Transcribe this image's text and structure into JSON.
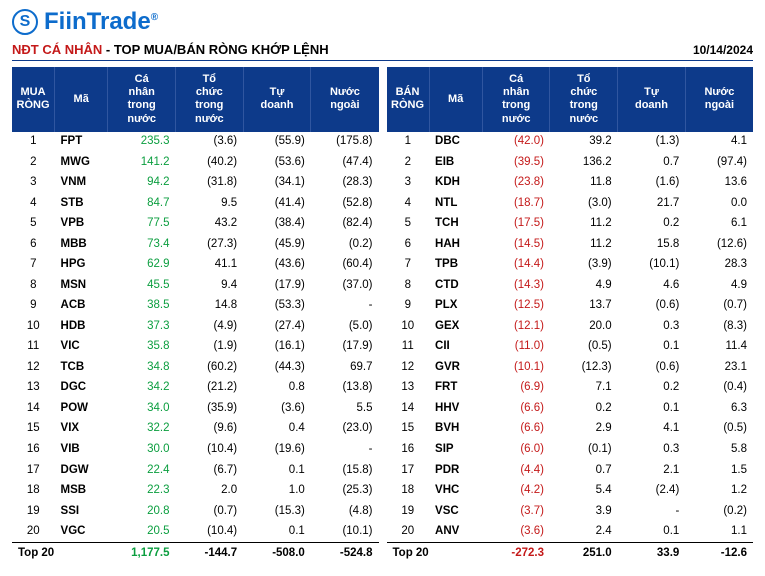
{
  "brand": "FiinTrade",
  "title_prefix": "NĐT CÁ NHÂN",
  "title_sep": " - ",
  "title_main": "TOP MUA/BÁN RÒNG KHỚP LỆNH",
  "date": "10/14/2024",
  "colors": {
    "brand": "#0d6ccc",
    "header_bg": "#0d3a8a",
    "positive": "#0b9e3f",
    "negative": "#c41919"
  },
  "buy": {
    "heading": "MUA RÒNG",
    "columns": [
      "Mã",
      "Cá nhân trong nước",
      "Tổ chức trong nước",
      "Tự doanh",
      "Nước ngoài"
    ],
    "rows": [
      {
        "r": 1,
        "t": "FPT",
        "v": [
          235.3,
          -3.6,
          -55.9,
          -175.8
        ]
      },
      {
        "r": 2,
        "t": "MWG",
        "v": [
          141.2,
          -40.2,
          -53.6,
          -47.4
        ]
      },
      {
        "r": 3,
        "t": "VNM",
        "v": [
          94.2,
          -31.8,
          -34.1,
          -28.3
        ]
      },
      {
        "r": 4,
        "t": "STB",
        "v": [
          84.7,
          9.5,
          -41.4,
          -52.8
        ]
      },
      {
        "r": 5,
        "t": "VPB",
        "v": [
          77.5,
          43.2,
          -38.4,
          -82.4
        ]
      },
      {
        "r": 6,
        "t": "MBB",
        "v": [
          73.4,
          -27.3,
          -45.9,
          -0.2
        ]
      },
      {
        "r": 7,
        "t": "HPG",
        "v": [
          62.9,
          41.1,
          -43.6,
          -60.4
        ]
      },
      {
        "r": 8,
        "t": "MSN",
        "v": [
          45.5,
          9.4,
          -17.9,
          -37.0
        ]
      },
      {
        "r": 9,
        "t": "ACB",
        "v": [
          38.5,
          14.8,
          -53.3,
          null
        ]
      },
      {
        "r": 10,
        "t": "HDB",
        "v": [
          37.3,
          -4.9,
          -27.4,
          -5.0
        ]
      },
      {
        "r": 11,
        "t": "VIC",
        "v": [
          35.8,
          -1.9,
          -16.1,
          -17.9
        ]
      },
      {
        "r": 12,
        "t": "TCB",
        "v": [
          34.8,
          -60.2,
          -44.3,
          69.7
        ]
      },
      {
        "r": 13,
        "t": "DGC",
        "v": [
          34.2,
          -21.2,
          0.8,
          -13.8
        ]
      },
      {
        "r": 14,
        "t": "POW",
        "v": [
          34.0,
          -35.9,
          -3.6,
          5.5
        ]
      },
      {
        "r": 15,
        "t": "VIX",
        "v": [
          32.2,
          -9.6,
          0.4,
          -23.0
        ]
      },
      {
        "r": 16,
        "t": "VIB",
        "v": [
          30.0,
          -10.4,
          -19.6,
          null
        ]
      },
      {
        "r": 17,
        "t": "DGW",
        "v": [
          22.4,
          -6.7,
          0.1,
          -15.8
        ]
      },
      {
        "r": 18,
        "t": "MSB",
        "v": [
          22.3,
          2.0,
          1.0,
          -25.3
        ]
      },
      {
        "r": 19,
        "t": "SSI",
        "v": [
          20.8,
          -0.7,
          -15.3,
          -4.8
        ]
      },
      {
        "r": 20,
        "t": "VGC",
        "v": [
          20.5,
          -10.4,
          0.1,
          -10.1
        ]
      }
    ],
    "footer_label": "Top 20",
    "footer": [
      1177.5,
      -144.7,
      -508.0,
      -524.8
    ]
  },
  "sell": {
    "heading": "BÁN RÒNG",
    "columns": [
      "Mã",
      "Cá nhân trong nước",
      "Tổ chức trong nước",
      "Tự doanh",
      "Nước ngoài"
    ],
    "rows": [
      {
        "r": 1,
        "t": "DBC",
        "v": [
          -42.0,
          39.2,
          -1.3,
          4.1
        ]
      },
      {
        "r": 2,
        "t": "EIB",
        "v": [
          -39.5,
          136.2,
          0.7,
          -97.4
        ]
      },
      {
        "r": 3,
        "t": "KDH",
        "v": [
          -23.8,
          11.8,
          -1.6,
          13.6
        ]
      },
      {
        "r": 4,
        "t": "NTL",
        "v": [
          -18.7,
          -3.0,
          21.7,
          0.0
        ]
      },
      {
        "r": 5,
        "t": "TCH",
        "v": [
          -17.5,
          11.2,
          0.2,
          6.1
        ]
      },
      {
        "r": 6,
        "t": "HAH",
        "v": [
          -14.5,
          11.2,
          15.8,
          -12.6
        ]
      },
      {
        "r": 7,
        "t": "TPB",
        "v": [
          -14.4,
          -3.9,
          -10.1,
          28.3
        ]
      },
      {
        "r": 8,
        "t": "CTD",
        "v": [
          -14.3,
          4.9,
          4.6,
          4.9
        ]
      },
      {
        "r": 9,
        "t": "PLX",
        "v": [
          -12.5,
          13.7,
          -0.6,
          -0.7
        ]
      },
      {
        "r": 10,
        "t": "GEX",
        "v": [
          -12.1,
          20.0,
          0.3,
          -8.3
        ]
      },
      {
        "r": 11,
        "t": "CII",
        "v": [
          -11.0,
          -0.5,
          0.1,
          11.4
        ]
      },
      {
        "r": 12,
        "t": "GVR",
        "v": [
          -10.1,
          -12.3,
          -0.6,
          23.1
        ]
      },
      {
        "r": 13,
        "t": "FRT",
        "v": [
          -6.9,
          7.1,
          0.2,
          -0.4
        ]
      },
      {
        "r": 14,
        "t": "HHV",
        "v": [
          -6.6,
          0.2,
          0.1,
          6.3
        ]
      },
      {
        "r": 15,
        "t": "BVH",
        "v": [
          -6.6,
          2.9,
          4.1,
          -0.5
        ]
      },
      {
        "r": 16,
        "t": "SIP",
        "v": [
          -6.0,
          -0.1,
          0.3,
          5.8
        ]
      },
      {
        "r": 17,
        "t": "PDR",
        "v": [
          -4.4,
          0.7,
          2.1,
          1.5
        ]
      },
      {
        "r": 18,
        "t": "VHC",
        "v": [
          -4.2,
          5.4,
          -2.4,
          1.2
        ]
      },
      {
        "r": 19,
        "t": "VSC",
        "v": [
          -3.7,
          3.9,
          null,
          -0.2
        ]
      },
      {
        "r": 20,
        "t": "ANV",
        "v": [
          -3.6,
          2.4,
          0.1,
          1.1
        ]
      }
    ],
    "footer_label": "Top 20",
    "footer": [
      -272.3,
      251.0,
      33.9,
      -12.6
    ]
  }
}
